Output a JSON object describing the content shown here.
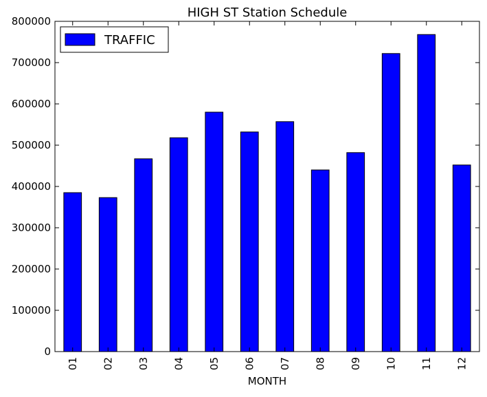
{
  "chart_data": {
    "type": "bar",
    "title": "HIGH ST Station Schedule",
    "xlabel": "MONTH",
    "ylabel": "",
    "categories": [
      "01",
      "02",
      "03",
      "04",
      "05",
      "06",
      "07",
      "08",
      "09",
      "10",
      "11",
      "12"
    ],
    "series": [
      {
        "name": "TRAFFIC",
        "color": "#0000ff",
        "values": [
          385000,
          373000,
          467000,
          518000,
          580000,
          532000,
          557000,
          440000,
          482000,
          722000,
          768000,
          452000
        ]
      }
    ],
    "ylim": [
      0,
      800000
    ],
    "yticks": [
      "0",
      "100000",
      "200000",
      "300000",
      "400000",
      "500000",
      "600000",
      "700000",
      "800000"
    ],
    "grid": false,
    "legend_position": "top-left",
    "bar_edge_color": "#000000"
  }
}
